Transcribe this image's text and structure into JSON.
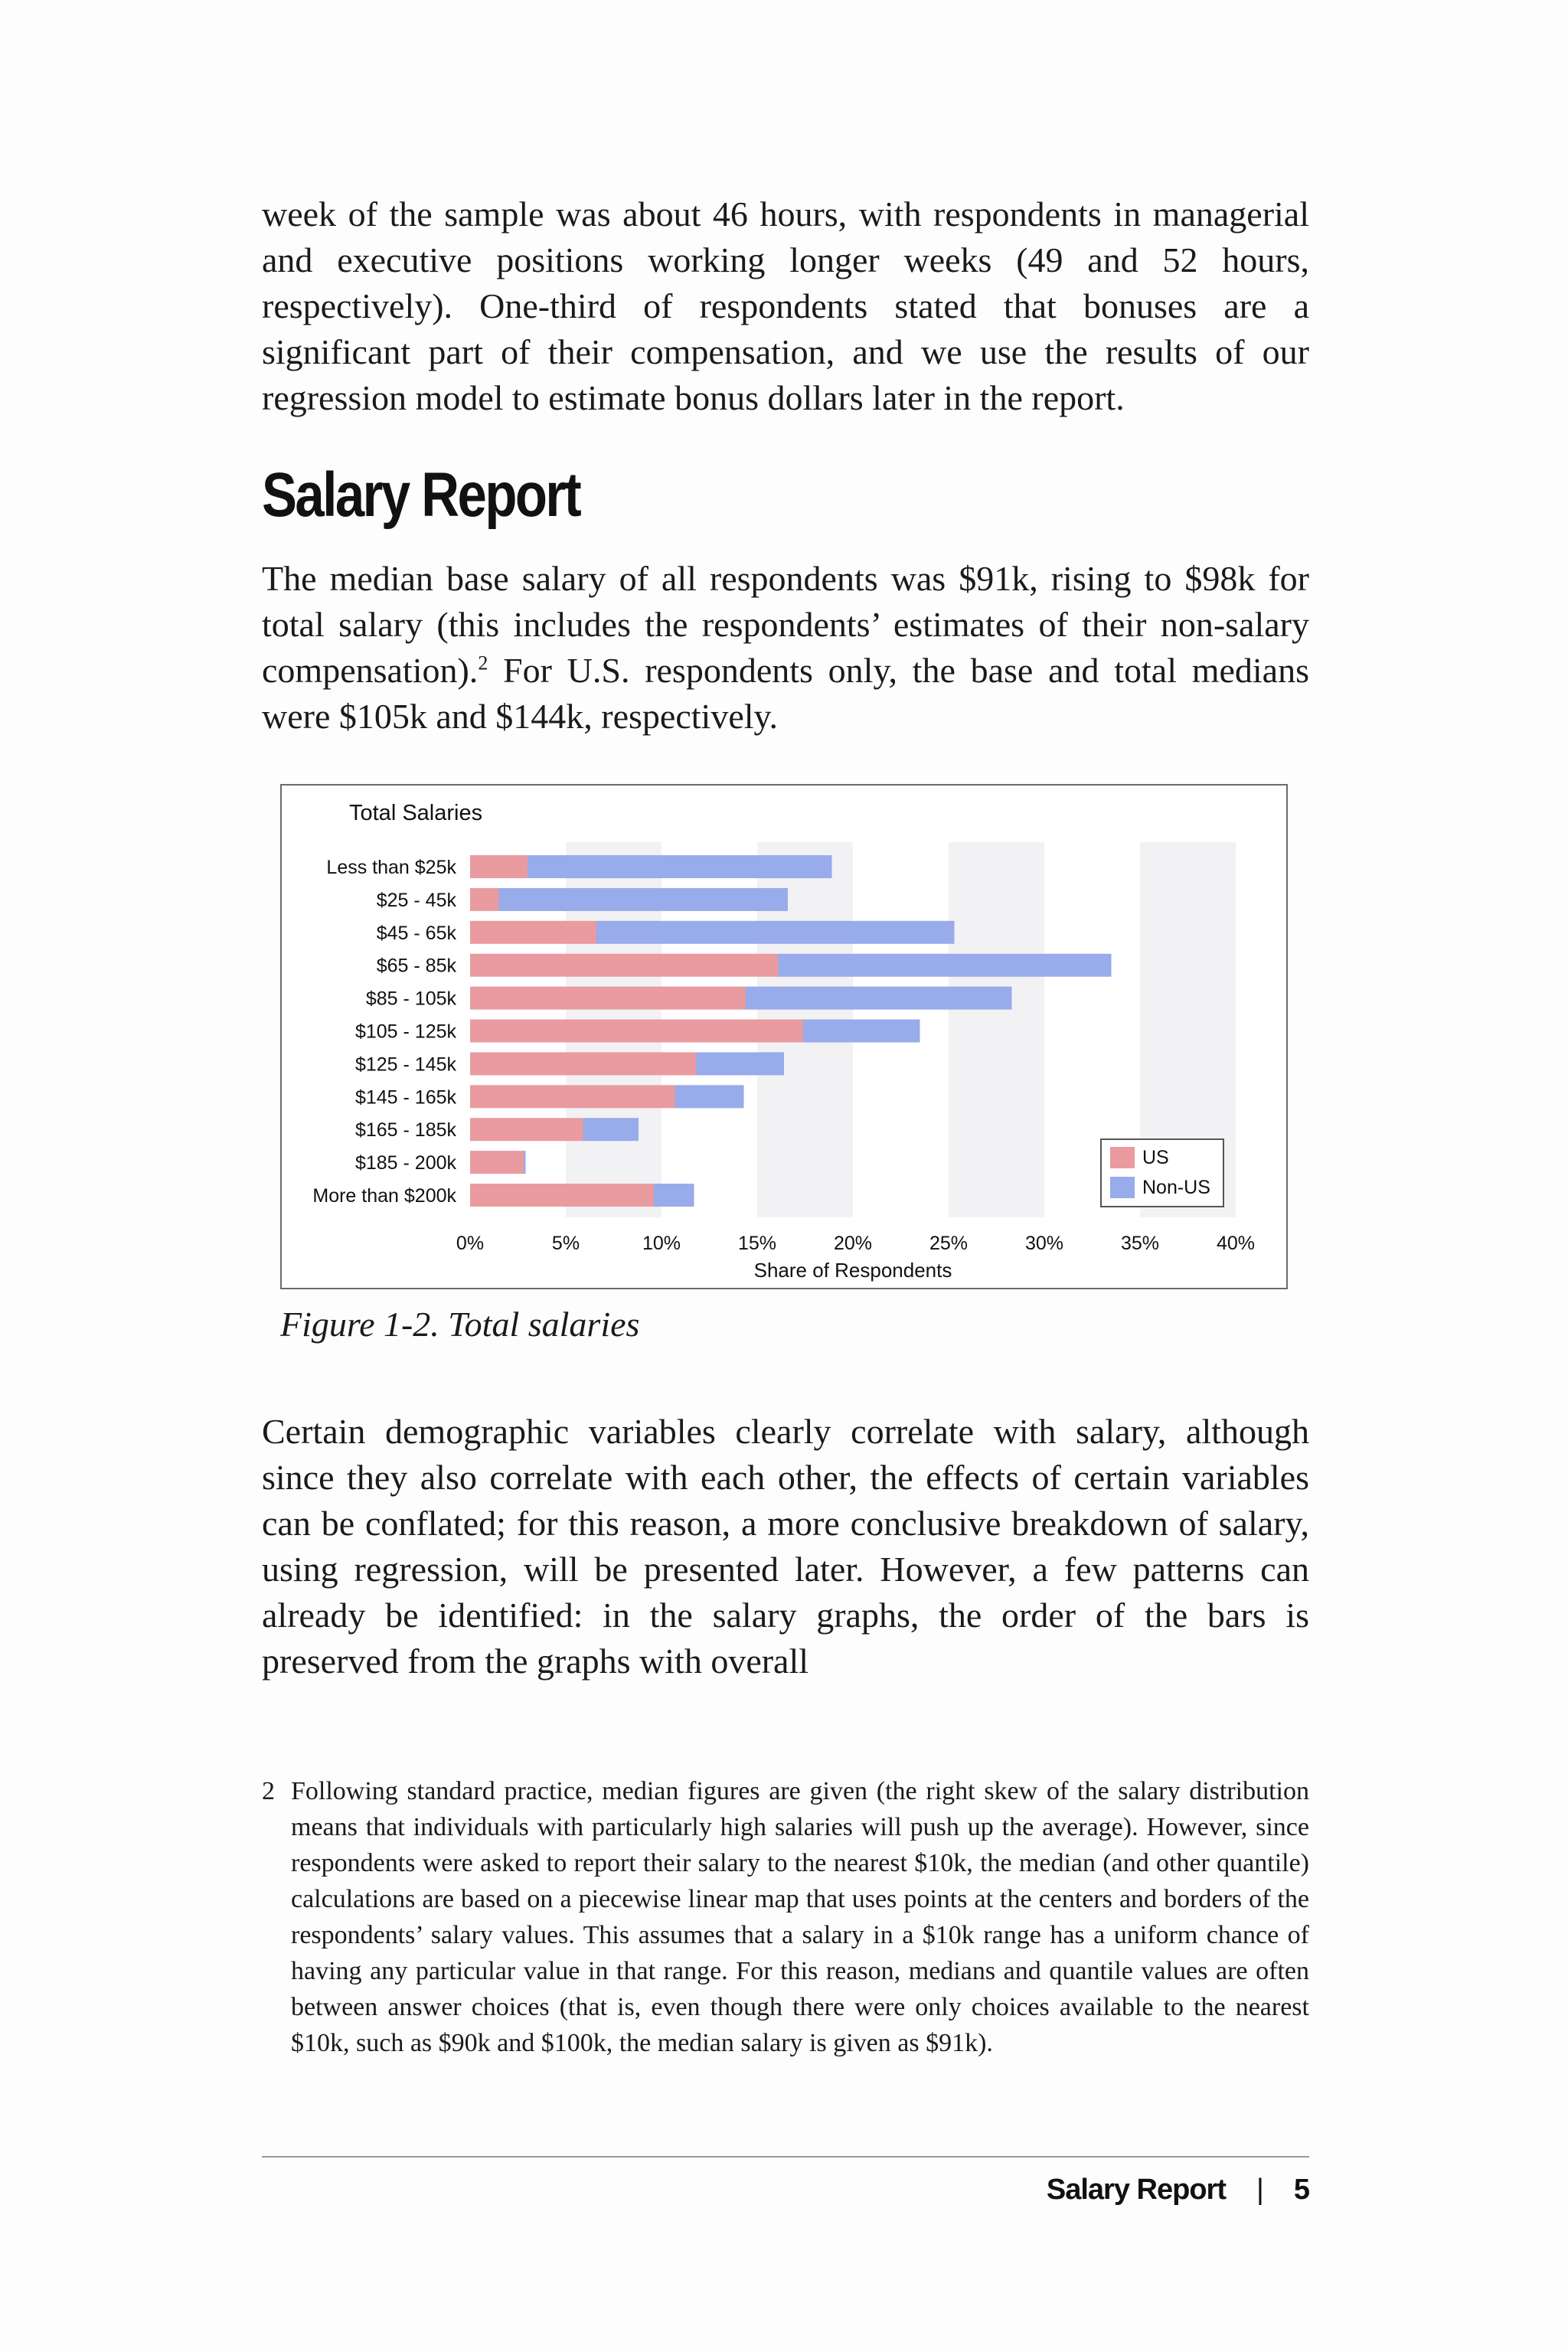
{
  "body": {
    "paragraph_top": "week of the sample was about 46 hours, with respondents in managerial and executive positions working longer weeks (49 and 52 hours, respectively). One-third of respondents stated that bonuses are a significant part of their compensation, and we use the results of our regression model to estimate bonus dollars later in the report.",
    "heading": "Salary Report",
    "paragraph_salary_a": "The median base salary of all respondents was $91k, rising to $98k for total salary (this includes the respondents’ estimates of their non-salary compensation).",
    "footnote_ref": "2",
    "paragraph_salary_b": " For U.S. respondents only, the base and total medians were $105k and $144k, respectively.",
    "caption": "Figure 1-2. Total salaries",
    "paragraph_after": "Certain demographic variables clearly correlate with salary, although since they also correlate with each other, the effects of certain variables can be conflated; for this reason, a more conclusive breakdown of salary, using regression, will be presented later. However, a few patterns can already be identified: in the salary graphs, the order of the bars is preserved from the graphs with overall"
  },
  "footnote": {
    "number": "2",
    "text": "Following standard practice, median figures are given (the right skew of the salary distribution means that individuals with particularly high salaries will push up the average). However, since respondents were asked to report their salary to the nearest $10k, the median (and other quantile) calculations are based on a piecewise linear map that uses points at the centers and borders of the respondents’ salary values. This assumes that a salary in a $10k range has a uniform chance of having any particular value in that range. For this reason, medians and quantile values are often between answer choices (that is, even though there were only choices available to the nearest $10k, such as $90k and $100k, the median salary is given as $91k)."
  },
  "footer": {
    "section": "Salary Report",
    "separator": "|",
    "page": "5"
  },
  "colors": {
    "us": "#e99b9f",
    "non_us": "#98abea",
    "band": "#f2f2f4"
  },
  "chart_data": {
    "type": "bar",
    "orientation": "horizontal",
    "stacked": true,
    "title": "Total Salaries",
    "xlabel": "Share of Respondents",
    "ylabel": "",
    "xlim": [
      0,
      40
    ],
    "xticks": [
      "0%",
      "5%",
      "10%",
      "15%",
      "20%",
      "25%",
      "30%",
      "35%",
      "40%"
    ],
    "categories": [
      "Less than $25k",
      "$25 - 45k",
      "$45 - 65k",
      "$65 - 85k",
      "$85 - 105k",
      "$105 - 125k",
      "$125 - 145k",
      "$145 - 165k",
      "$165 - 185k",
      "$185 - 200k",
      "More than $200k"
    ],
    "series": [
      {
        "name": "US",
        "color": "#e99b9f",
        "values": [
          3.0,
          1.5,
          6.6,
          16.1,
          14.4,
          17.4,
          11.8,
          10.7,
          5.9,
          2.8,
          9.6
        ]
      },
      {
        "name": "Non-US",
        "color": "#98abea",
        "values": [
          15.9,
          15.1,
          18.7,
          17.4,
          13.9,
          6.1,
          4.6,
          3.6,
          2.9,
          0.1,
          2.1
        ]
      }
    ],
    "legend_position": "bottom-right",
    "grid": "alternating vertical bands"
  }
}
